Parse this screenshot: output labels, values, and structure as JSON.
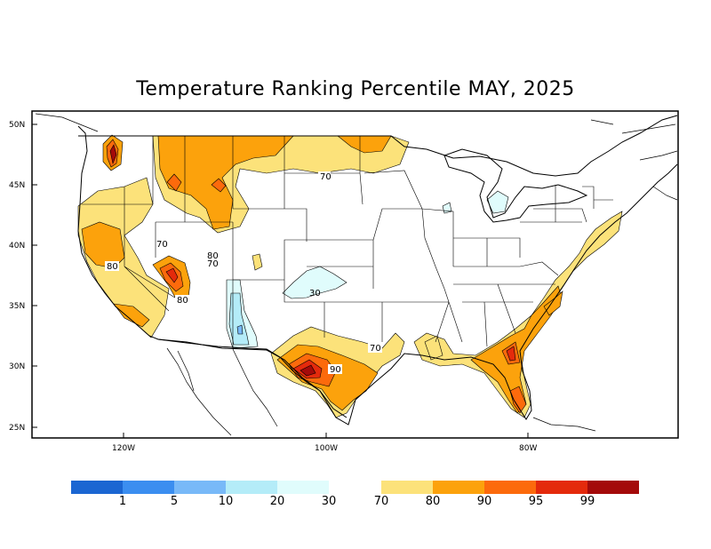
{
  "title": "Temperature Ranking Percentile MAY, 2025",
  "lat_ticks": [
    "50N",
    "45N",
    "40N",
    "35N",
    "30N",
    "25N"
  ],
  "lon_ticks": [
    "120W",
    "100W",
    "80W"
  ],
  "contour_labels": [
    "70",
    "70",
    "80",
    "80",
    "70",
    "80",
    "30",
    "70",
    "90"
  ],
  "legend": {
    "cold_colors": [
      "#1b66d2",
      "#3b8ef0",
      "#78b9f8",
      "#b4ecf8",
      "#e0fcfc"
    ],
    "warm_colors": [
      "#fce27a",
      "#fca20c",
      "#fc6a0c",
      "#e42a0c",
      "#a40a0a"
    ],
    "cold_labels": [
      "1",
      "5",
      "10",
      "20",
      "30"
    ],
    "warm_labels": [
      "70",
      "80",
      "90",
      "95",
      "99"
    ]
  }
}
